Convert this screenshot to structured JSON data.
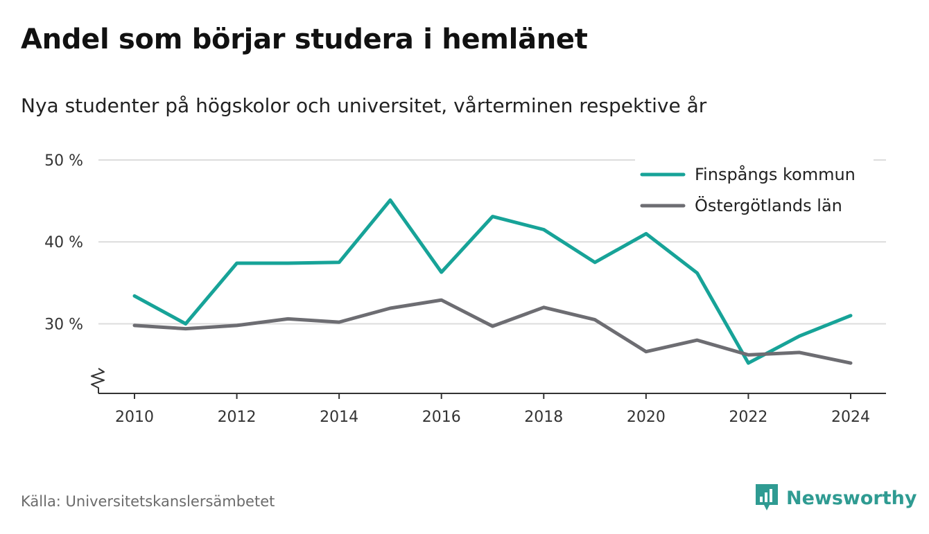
{
  "chart_data": {
    "type": "line",
    "title": "Andel som börjar studera i hemlänet",
    "subtitle": "Nya studenter på högskolor och universitet, vårterminen respektive år",
    "x": [
      2010,
      2011,
      2012,
      2013,
      2014,
      2015,
      2016,
      2017,
      2018,
      2019,
      2020,
      2021,
      2022,
      2023,
      2024
    ],
    "x_ticks": [
      "2010",
      "2012",
      "2014",
      "2016",
      "2018",
      "2020",
      "2022",
      "2024"
    ],
    "y_ticks": [
      "30 %",
      "40 %",
      "50 %"
    ],
    "y_tick_values": [
      30,
      40,
      50
    ],
    "ylim": [
      21.5,
      50
    ],
    "y_axis_break": true,
    "grid": "horizontal",
    "legend_position": "top-right",
    "series": [
      {
        "name": "Finspångs kommun",
        "color": "#17a398",
        "values": [
          33.4,
          30.0,
          37.4,
          37.4,
          37.5,
          45.1,
          36.3,
          43.1,
          41.5,
          37.5,
          41.0,
          36.2,
          25.2,
          28.5,
          31.0
        ]
      },
      {
        "name": "Östergötlands län",
        "color": "#6d6d72",
        "values": [
          29.8,
          29.4,
          29.8,
          30.6,
          30.2,
          31.9,
          32.9,
          29.7,
          32.0,
          30.5,
          26.6,
          28.0,
          26.2,
          26.5,
          25.2
        ]
      }
    ]
  },
  "footer": {
    "source": "Källa: Universitetskanslersämbetet",
    "brand": "Newsworthy",
    "brand_icon": "newsworthy-logo-icon",
    "brand_color": "#2f9b92"
  }
}
